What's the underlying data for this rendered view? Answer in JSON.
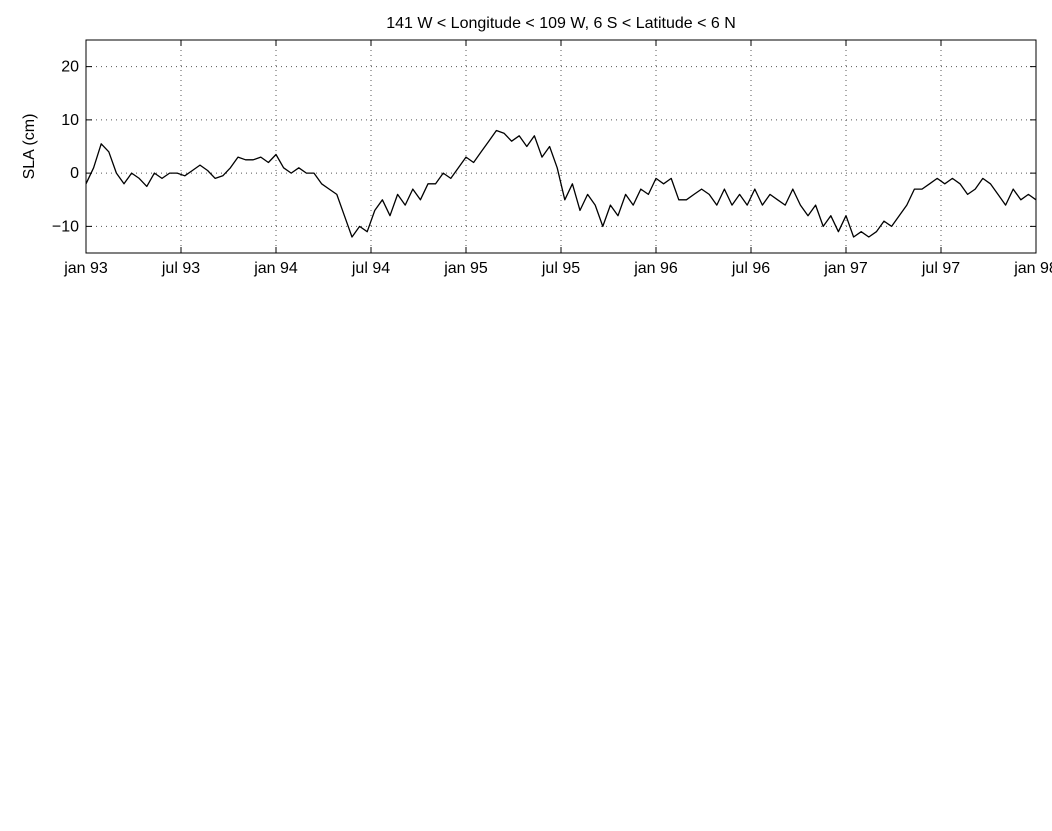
{
  "figure": {
    "colors": {
      "line": "#000000",
      "grid": "#555555",
      "background": "#ffffff"
    }
  },
  "chart_data": [
    {
      "type": "line",
      "title": "141 W < Longitude < 109 W,   6 S < Latitude < 6 N",
      "ylabel": "SLA (cm)",
      "xlabel": "",
      "x_axis": "time (years)",
      "xlim": [
        1993.0,
        1998.0
      ],
      "ylim": [
        -15,
        25
      ],
      "yticks": [
        -10,
        0,
        10,
        20
      ],
      "xticks": [
        1993.0,
        1993.5,
        1994.0,
        1994.5,
        1995.0,
        1995.5,
        1996.0,
        1996.5,
        1997.0,
        1997.5,
        1998.0
      ],
      "xtick_labels": [
        "jan 93",
        "jul 93",
        "jan 94",
        "jul 94",
        "jan 95",
        "jul 95",
        "jan 96",
        "jul 96",
        "jan 97",
        "jul 97",
        "jan 98"
      ],
      "grid": true,
      "series": [
        {
          "style": "solid",
          "points": [
            [
              1993.0,
              -2
            ],
            [
              1993.04,
              1
            ],
            [
              1993.08,
              5.5
            ],
            [
              1993.12,
              4
            ],
            [
              1993.16,
              0
            ],
            [
              1993.2,
              -2
            ],
            [
              1993.24,
              0
            ],
            [
              1993.28,
              -1
            ],
            [
              1993.32,
              -2.5
            ],
            [
              1993.36,
              0
            ],
            [
              1993.4,
              -1
            ],
            [
              1993.44,
              0
            ],
            [
              1993.48,
              0
            ],
            [
              1993.52,
              -0.5
            ],
            [
              1993.56,
              0.5
            ],
            [
              1993.6,
              1.5
            ],
            [
              1993.64,
              0.5
            ],
            [
              1993.68,
              -1
            ],
            [
              1993.72,
              -0.5
            ],
            [
              1993.76,
              1
            ],
            [
              1993.8,
              3
            ],
            [
              1993.84,
              2.5
            ],
            [
              1993.88,
              2.5
            ],
            [
              1993.92,
              3
            ],
            [
              1993.96,
              2
            ],
            [
              1994.0,
              3.5
            ],
            [
              1994.04,
              1
            ],
            [
              1994.08,
              0
            ],
            [
              1994.12,
              1
            ],
            [
              1994.16,
              0
            ],
            [
              1994.2,
              0
            ],
            [
              1994.24,
              -2
            ],
            [
              1994.28,
              -3
            ],
            [
              1994.32,
              -4
            ],
            [
              1994.36,
              -8
            ],
            [
              1994.4,
              -12
            ],
            [
              1994.44,
              -10
            ],
            [
              1994.48,
              -11
            ],
            [
              1994.52,
              -7
            ],
            [
              1994.56,
              -5
            ],
            [
              1994.6,
              -8
            ],
            [
              1994.64,
              -4
            ],
            [
              1994.68,
              -6
            ],
            [
              1994.72,
              -3
            ],
            [
              1994.76,
              -5
            ],
            [
              1994.8,
              -2
            ],
            [
              1994.84,
              -2
            ],
            [
              1994.88,
              0
            ],
            [
              1994.92,
              -1
            ],
            [
              1994.96,
              1
            ],
            [
              1995.0,
              3
            ],
            [
              1995.04,
              2
            ],
            [
              1995.08,
              4
            ],
            [
              1995.12,
              6
            ],
            [
              1995.16,
              8
            ],
            [
              1995.2,
              7.5
            ],
            [
              1995.24,
              6
            ],
            [
              1995.28,
              7
            ],
            [
              1995.32,
              5
            ],
            [
              1995.36,
              7
            ],
            [
              1995.4,
              3
            ],
            [
              1995.44,
              5
            ],
            [
              1995.48,
              1
            ],
            [
              1995.52,
              -5
            ],
            [
              1995.56,
              -2
            ],
            [
              1995.6,
              -7
            ],
            [
              1995.64,
              -4
            ],
            [
              1995.68,
              -6
            ],
            [
              1995.72,
              -10
            ],
            [
              1995.76,
              -6
            ],
            [
              1995.8,
              -8
            ],
            [
              1995.84,
              -4
            ],
            [
              1995.88,
              -6
            ],
            [
              1995.92,
              -3
            ],
            [
              1995.96,
              -4
            ],
            [
              1996.0,
              -1
            ],
            [
              1996.04,
              -2
            ],
            [
              1996.08,
              -1
            ],
            [
              1996.12,
              -5
            ],
            [
              1996.16,
              -5
            ],
            [
              1996.2,
              -4
            ],
            [
              1996.24,
              -3
            ],
            [
              1996.28,
              -4
            ],
            [
              1996.32,
              -6
            ],
            [
              1996.36,
              -3
            ],
            [
              1996.4,
              -6
            ],
            [
              1996.44,
              -4
            ],
            [
              1996.48,
              -6
            ],
            [
              1996.52,
              -3
            ],
            [
              1996.56,
              -6
            ],
            [
              1996.6,
              -4
            ],
            [
              1996.64,
              -5
            ],
            [
              1996.68,
              -6
            ],
            [
              1996.72,
              -3
            ],
            [
              1996.76,
              -6
            ],
            [
              1996.8,
              -8
            ],
            [
              1996.84,
              -6
            ],
            [
              1996.88,
              -10
            ],
            [
              1996.92,
              -8
            ],
            [
              1996.96,
              -11
            ],
            [
              1997.0,
              -8
            ],
            [
              1997.04,
              -12
            ],
            [
              1997.08,
              -11
            ],
            [
              1997.12,
              -12
            ],
            [
              1997.16,
              -11
            ],
            [
              1997.2,
              -9
            ],
            [
              1997.24,
              -10
            ],
            [
              1997.28,
              -8
            ],
            [
              1997.32,
              -6
            ],
            [
              1997.36,
              -3
            ],
            [
              1997.4,
              -3
            ],
            [
              1997.44,
              -2
            ],
            [
              1997.48,
              -1
            ],
            [
              1997.52,
              -2
            ],
            [
              1997.56,
              -1
            ],
            [
              1997.6,
              -2
            ],
            [
              1997.64,
              -4
            ],
            [
              1997.68,
              -3
            ],
            [
              1997.72,
              -1
            ],
            [
              1997.76,
              -2
            ],
            [
              1997.8,
              -4
            ],
            [
              1997.84,
              -6
            ],
            [
              1997.88,
              -3
            ],
            [
              1997.92,
              -5
            ],
            [
              1997.96,
              -4
            ],
            [
              1998.0,
              -5
            ]
          ]
        }
      ]
    }
  ]
}
